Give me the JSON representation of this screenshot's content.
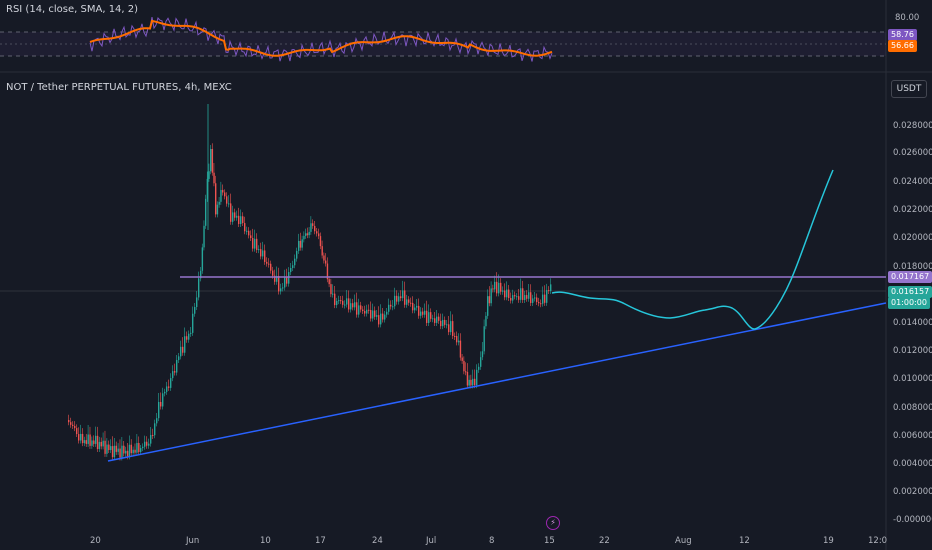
{
  "indicator": {
    "title": "RSI (14, close, SMA, 14, 2)",
    "level_high": "80.00",
    "rsi_value": "58.76",
    "sma_value": "56.66"
  },
  "symbol": {
    "title": "NOT / Tether PERPETUAL FUTURES, 4h, MEXC"
  },
  "unit_button": "USDT",
  "price_axis": {
    "ticks": [
      "0.028000",
      "0.026000",
      "0.024000",
      "0.022000",
      "0.020000",
      "0.018000",
      "0.016000",
      "0.014000",
      "0.012000",
      "0.010000",
      "0.008000",
      "0.006000",
      "0.004000",
      "0.002000",
      "-0.000000"
    ]
  },
  "badges": {
    "resistance": "0.017167",
    "last_price": "0.016157",
    "countdown": "01:00:00"
  },
  "time_axis": {
    "ticks": [
      "20",
      "Jun",
      "10",
      "17",
      "24",
      "Jul",
      "8",
      "15",
      "22",
      "Aug",
      "12",
      "19",
      "12:0"
    ]
  },
  "colors": {
    "background": "#161a25",
    "resistance": "#9575cd",
    "support": "#2962ff",
    "projection": "#26c6da",
    "rsi_line": "#7e57c2",
    "rsi_ma": "#ff6d00",
    "up": "#26a69a",
    "down": "#ef5350"
  },
  "flag_icon": "lightning-icon"
}
